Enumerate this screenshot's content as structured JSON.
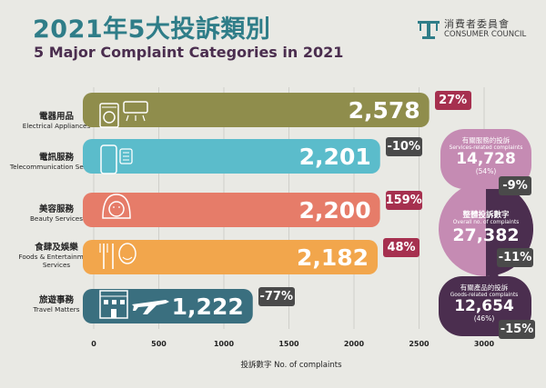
{
  "title": {
    "zh": "2021年5大投訴類別",
    "en": "5 Major Complaint Categories in 2021"
  },
  "logo": {
    "zh": "消費者委員會",
    "en": "CONSUMER COUNCIL"
  },
  "colors": {
    "bar1": "#8f8d4c",
    "bar2": "#5bbccb",
    "bar3": "#e67c69",
    "bar4": "#f2a64c",
    "bar5": "#3a6f7f",
    "inc": "#a6304f",
    "dec": "#4a4a4a",
    "services": "#c58bb3",
    "goods": "#4b2e4f"
  },
  "chart_data": {
    "type": "bar",
    "orientation": "horizontal",
    "title": "5 Major Complaint Categories in 2021",
    "xlabel": "投訴數字 No. of complaints",
    "xlim": [
      0,
      3000
    ],
    "xticks": [
      "0",
      "500",
      "1000",
      "1500",
      "2000",
      "2500",
      "3000"
    ],
    "categories": [
      {
        "zh": "電器用品",
        "en": "Electrical Appliances",
        "value": 2578,
        "label": "2,578",
        "change": "27%"
      },
      {
        "zh": "電訊服務",
        "en": "Telecommunication Services",
        "value": 2201,
        "label": "2,201",
        "change": "-10%"
      },
      {
        "zh": "美容服務",
        "en": "Beauty Services",
        "value": 2200,
        "label": "2,200",
        "change": "159%"
      },
      {
        "zh": "食肆及娛樂",
        "en": "Foods & Entertainment Services",
        "value": 2182,
        "label": "2,182",
        "change": "48%"
      },
      {
        "zh": "旅遊事務",
        "en": "Travel Matters",
        "value": 1222,
        "label": "1,222",
        "change": "-77%"
      }
    ],
    "summary": {
      "services": {
        "zh": "有關服務的投訴",
        "en": "Services-related complaints",
        "value": "14,728",
        "share": "(54%)",
        "change": "-9%"
      },
      "total": {
        "zh": "整體投訴數字",
        "en": "Overall no. of complaints",
        "value": "27,382",
        "change": "-11%"
      },
      "goods": {
        "zh": "有關產品的投訴",
        "en": "Goods-related complaints",
        "value": "12,654",
        "share": "(46%)",
        "change": "-15%"
      }
    }
  }
}
